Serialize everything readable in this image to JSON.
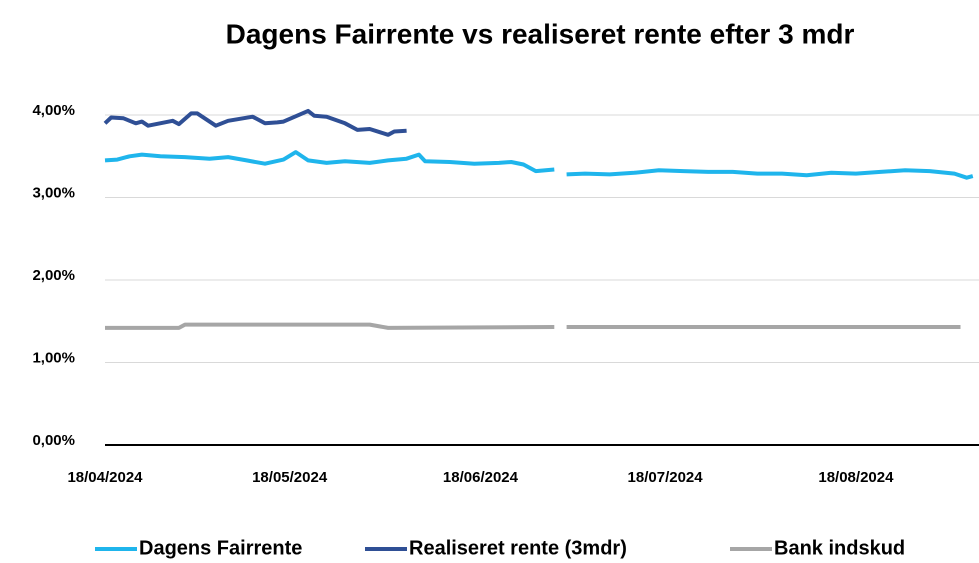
{
  "chart_data": {
    "type": "line",
    "title": "Dagens Fairrente vs realiseret rente efter 3 mdr",
    "xlim": [
      "18/04/2024",
      "07/09/2024"
    ],
    "xticks": [
      "18/04/2024",
      "18/05/2024",
      "18/06/2024",
      "18/07/2024",
      "18/08/2024"
    ],
    "ylim": [
      0,
      4.4
    ],
    "yticks": [
      {
        "value": 0,
        "label": "0,00%"
      },
      {
        "value": 1,
        "label": "1,00%"
      },
      {
        "value": 2,
        "label": "2,00%"
      },
      {
        "value": 3,
        "label": "3,00%"
      },
      {
        "value": 4,
        "label": "4,00%"
      }
    ],
    "grid": true,
    "legend": "bottom",
    "series": [
      {
        "name": "Dagens Fairrente",
        "color": "#1fb5ec",
        "x": [
          "18/04/2024",
          "20/04/2024",
          "22/04/2024",
          "24/04/2024",
          "27/04/2024",
          "01/05/2024",
          "05/05/2024",
          "08/05/2024",
          "11/05/2024",
          "14/05/2024",
          "17/05/2024",
          "19/05/2024",
          "21/05/2024",
          "24/05/2024",
          "27/05/2024",
          "31/05/2024",
          "03/06/2024",
          "06/06/2024",
          "08/06/2024",
          "09/06/2024",
          "13/06/2024",
          "17/06/2024",
          "21/06/2024",
          "23/06/2024",
          "25/06/2024",
          "27/06/2024",
          "30/06/2024",
          "01/07/2024",
          "02/07/2024",
          "05/07/2024",
          "09/07/2024",
          "13/07/2024",
          "17/07/2024",
          "21/07/2024",
          "25/07/2024",
          "29/07/2024",
          "02/08/2024",
          "06/08/2024",
          "10/08/2024",
          "14/08/2024",
          "18/08/2024",
          "22/08/2024",
          "26/08/2024",
          "30/08/2024",
          "03/09/2024",
          "05/09/2024",
          "06/09/2024"
        ],
        "values": [
          3.45,
          3.46,
          3.5,
          3.52,
          3.5,
          3.49,
          3.47,
          3.49,
          3.45,
          3.41,
          3.46,
          3.55,
          3.45,
          3.42,
          3.44,
          3.42,
          3.45,
          3.47,
          3.52,
          3.44,
          3.43,
          3.41,
          3.42,
          3.43,
          3.4,
          3.32,
          3.34,
          null,
          3.28,
          3.29,
          3.28,
          3.3,
          3.33,
          3.32,
          3.31,
          3.31,
          3.29,
          3.29,
          3.27,
          3.3,
          3.29,
          3.31,
          3.33,
          3.32,
          3.29,
          3.24,
          3.26
        ]
      },
      {
        "name": "Realiseret rente (3mdr)",
        "color": "#2f4f95",
        "x": [
          "18/04/2024",
          "19/04/2024",
          "21/04/2024",
          "23/04/2024",
          "24/04/2024",
          "25/04/2024",
          "29/04/2024",
          "30/04/2024",
          "02/05/2024",
          "03/05/2024",
          "06/05/2024",
          "08/05/2024",
          "12/05/2024",
          "14/05/2024",
          "16/05/2024",
          "17/05/2024",
          "21/05/2024",
          "22/05/2024",
          "24/05/2024",
          "27/05/2024",
          "29/05/2024",
          "31/05/2024",
          "03/06/2024",
          "04/06/2024",
          "06/06/2024"
        ],
        "values": [
          3.9,
          3.97,
          3.96,
          3.9,
          3.92,
          3.87,
          3.93,
          3.89,
          4.02,
          4.02,
          3.87,
          3.93,
          3.98,
          3.9,
          3.91,
          3.92,
          4.05,
          3.99,
          3.98,
          3.9,
          3.82,
          3.83,
          3.76,
          3.8,
          3.81
        ]
      },
      {
        "name": "Bank indskud",
        "color": "#a6a6a6",
        "x": [
          "18/04/2024",
          "30/04/2024",
          "01/05/2024",
          "31/05/2024",
          "03/06/2024",
          "30/06/2024",
          "01/07/2024",
          "02/07/2024",
          "04/09/2024"
        ],
        "values": [
          1.42,
          1.42,
          1.46,
          1.46,
          1.42,
          1.43,
          null,
          1.43,
          1.43
        ]
      }
    ]
  }
}
